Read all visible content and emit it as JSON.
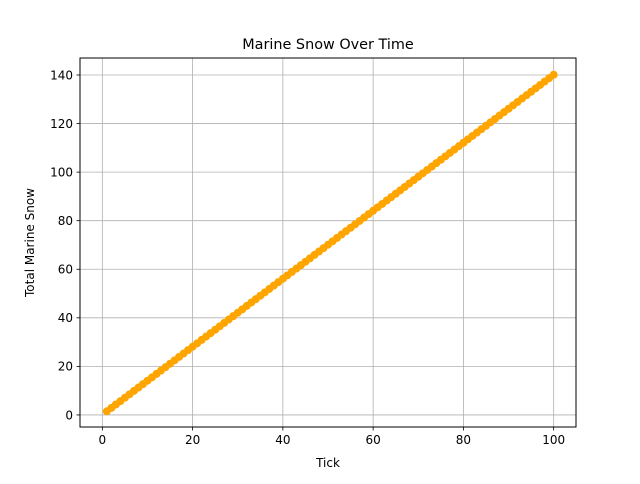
{
  "chart_data": {
    "type": "line",
    "title": "Marine Snow Over Time",
    "xlabel": "Tick",
    "ylabel": "Total Marine Snow",
    "xlim": [
      -4.95,
      104.95
    ],
    "ylim": [
      -4.96,
      147.0
    ],
    "xticks": [
      0,
      20,
      40,
      60,
      80,
      100
    ],
    "yticks": [
      0,
      20,
      40,
      60,
      80,
      100,
      120,
      140
    ],
    "grid": true,
    "legend": "none",
    "series": [
      {
        "color": "#ffa500",
        "marker": "circle",
        "x": [
          1,
          2,
          3,
          4,
          5,
          6,
          7,
          8,
          9,
          10,
          11,
          12,
          13,
          14,
          15,
          16,
          17,
          18,
          19,
          20,
          21,
          22,
          23,
          24,
          25,
          26,
          27,
          28,
          29,
          30,
          31,
          32,
          33,
          34,
          35,
          36,
          37,
          38,
          39,
          40,
          41,
          42,
          43,
          44,
          45,
          46,
          47,
          48,
          49,
          50,
          51,
          52,
          53,
          54,
          55,
          56,
          57,
          58,
          59,
          60,
          61,
          62,
          63,
          64,
          65,
          66,
          67,
          68,
          69,
          70,
          71,
          72,
          73,
          74,
          75,
          76,
          77,
          78,
          79,
          80,
          81,
          82,
          83,
          84,
          85,
          86,
          87,
          88,
          89,
          90,
          91,
          92,
          93,
          94,
          95,
          96,
          97,
          98,
          99,
          100
        ],
        "y": [
          1.5,
          2.9,
          4.3,
          5.7,
          7.1,
          8.5,
          9.9,
          11.3,
          12.7,
          14.1,
          15.5,
          16.9,
          18.3,
          19.7,
          21.1,
          22.5,
          23.9,
          25.3,
          26.7,
          28.1,
          29.5,
          30.9,
          32.3,
          33.7,
          35.1,
          36.5,
          37.9,
          39.3,
          40.7,
          42.1,
          43.5,
          44.9,
          46.3,
          47.7,
          49.1,
          50.5,
          51.9,
          53.3,
          54.7,
          56.1,
          57.5,
          58.9,
          60.3,
          61.7,
          63.1,
          64.5,
          65.9,
          67.3,
          68.7,
          70.1,
          71.5,
          72.9,
          74.3,
          75.7,
          77.1,
          78.5,
          79.9,
          81.3,
          82.7,
          84.1,
          85.5,
          86.9,
          88.3,
          89.7,
          91.1,
          92.5,
          93.9,
          95.3,
          96.7,
          98.1,
          99.5,
          100.9,
          102.3,
          103.7,
          105.1,
          106.5,
          107.9,
          109.3,
          110.7,
          112.1,
          113.5,
          114.9,
          116.3,
          117.7,
          119.1,
          120.5,
          121.9,
          123.3,
          124.7,
          126.1,
          127.5,
          128.9,
          130.3,
          131.7,
          133.1,
          134.5,
          135.9,
          137.3,
          138.7,
          140.1
        ]
      }
    ]
  },
  "colors": {
    "series": "#ffa500",
    "grid": "#b0b0b0",
    "axes": "#000000",
    "background": "#ffffff"
  }
}
